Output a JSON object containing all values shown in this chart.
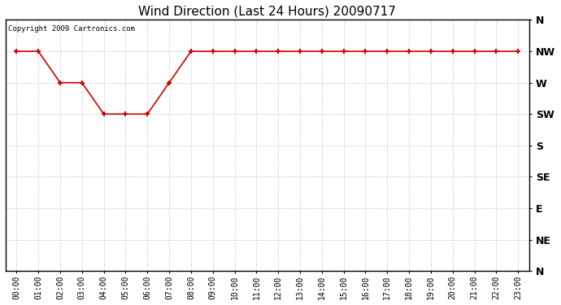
{
  "title": "Wind Direction (Last 24 Hours) 20090717",
  "copyright": "Copyright 2009 Cartronics.com",
  "background_color": "#ffffff",
  "line_color": "#cc0000",
  "grid_color": "#cccccc",
  "x_labels": [
    "00:00",
    "01:00",
    "02:00",
    "03:00",
    "04:00",
    "05:00",
    "06:00",
    "07:00",
    "08:00",
    "09:00",
    "10:00",
    "11:00",
    "12:00",
    "13:00",
    "14:00",
    "15:00",
    "16:00",
    "17:00",
    "18:00",
    "19:00",
    "20:00",
    "21:00",
    "22:00",
    "23:00"
  ],
  "y_labels": [
    "N",
    "NW",
    "W",
    "SW",
    "S",
    "SE",
    "E",
    "NE",
    "N"
  ],
  "y_ticks": [
    8,
    7,
    6,
    5,
    4,
    3,
    2,
    1,
    0
  ],
  "wind_data": [
    7,
    7,
    6,
    6,
    5,
    5,
    5,
    6,
    7,
    7,
    7,
    7,
    7,
    7,
    7,
    7,
    7,
    7,
    7,
    7,
    7,
    7,
    7,
    7
  ]
}
